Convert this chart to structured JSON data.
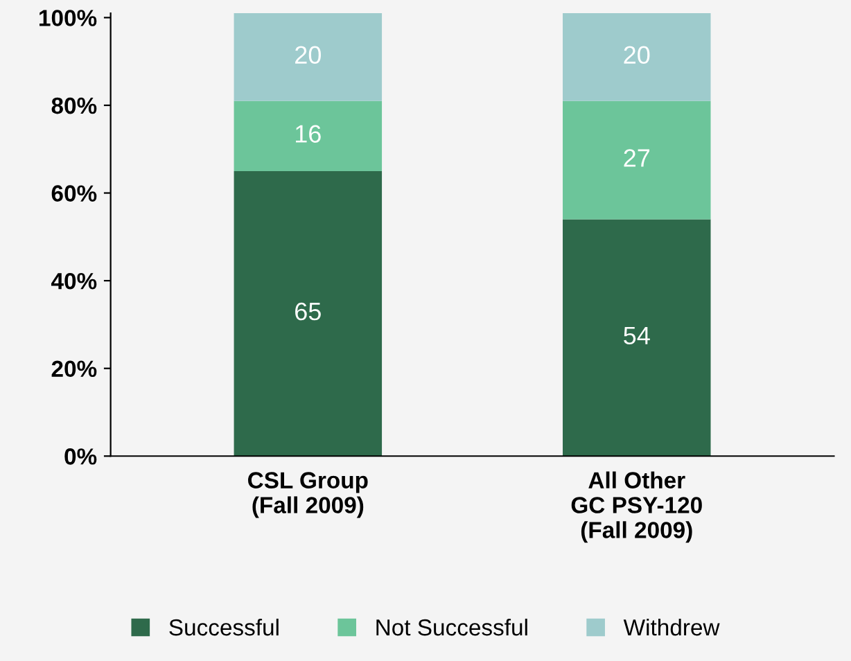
{
  "chart_data": {
    "type": "bar",
    "stacked": true,
    "data_labels": true,
    "legend": "bottom",
    "grid": false,
    "categories": [
      "CSL Group\n(Fall 2009)",
      "All Other\nGC PSY-120\n(Fall 2009)"
    ],
    "series": [
      {
        "name": "Successful",
        "color": "#2e6a4b",
        "values": [
          65,
          54
        ]
      },
      {
        "name": "Not Successful",
        "color": "#6cc59a",
        "values": [
          16,
          27
        ]
      },
      {
        "name": "Withdrew",
        "color": "#9ecbcc",
        "values": [
          20,
          20
        ]
      }
    ],
    "ylim": [
      0,
      101
    ],
    "yticks": [
      {
        "value": 0,
        "label": "0%"
      },
      {
        "value": 20,
        "label": "20%"
      },
      {
        "value": 40,
        "label": "40%"
      },
      {
        "value": 60,
        "label": "60%"
      },
      {
        "value": 80,
        "label": "80%"
      },
      {
        "value": 100,
        "label": "100%"
      }
    ]
  }
}
